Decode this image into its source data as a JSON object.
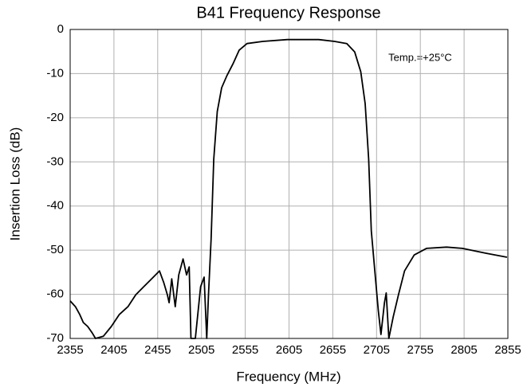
{
  "chart_data": {
    "type": "line",
    "title": "B41 Frequency Response",
    "x_label": "Frequency (MHz)",
    "y_label": "Insertion Loss (dB)",
    "annotation": "Temp.=+25°C",
    "xlim": [
      2355,
      2855
    ],
    "ylim": [
      -70,
      0
    ],
    "xticks": [
      2355,
      2405,
      2455,
      2505,
      2555,
      2605,
      2655,
      2705,
      2755,
      2805,
      2855
    ],
    "yticks": [
      -70,
      -60,
      -50,
      -40,
      -30,
      -20,
      -10,
      0
    ],
    "grid": true,
    "series": [
      {
        "name": "Insertion Loss",
        "color": "#000000",
        "x": [
          2355,
          2361,
          2366,
          2370,
          2375,
          2380,
          2384,
          2393,
          2402,
          2411,
          2421,
          2430,
          2439,
          2448,
          2457,
          2462,
          2466,
          2468,
          2471,
          2475,
          2479,
          2484,
          2488,
          2491,
          2493,
          2498,
          2504,
          2508,
          2511,
          2513,
          2516,
          2519,
          2523,
          2528,
          2534,
          2541,
          2548,
          2557,
          2575,
          2603,
          2639,
          2657,
          2671,
          2680,
          2687,
          2692,
          2696,
          2699,
          2703,
          2707,
          2710,
          2714,
          2716,
          2719,
          2724,
          2730,
          2737,
          2748,
          2762,
          2785,
          2803,
          2830,
          2854
        ],
        "values": [
          -61.5,
          -62.8,
          -64.6,
          -66.4,
          -67.3,
          -68.7,
          -70,
          -69.5,
          -67.3,
          -64.6,
          -62.8,
          -60.1,
          -58.3,
          -56.5,
          -54.7,
          -57.4,
          -60.1,
          -61.9,
          -56.5,
          -62.8,
          -55.6,
          -52,
          -55.6,
          -53.8,
          -70,
          -70,
          -58.3,
          -56.1,
          -70,
          -60.1,
          -47.4,
          -29.4,
          -18.6,
          -13.2,
          -10.5,
          -7.8,
          -4.7,
          -3.2,
          -2.7,
          -2.3,
          -2.3,
          -2.7,
          -3.2,
          -5.1,
          -9.6,
          -16.8,
          -29.4,
          -45.6,
          -54.7,
          -63.7,
          -69.1,
          -61.9,
          -59.7,
          -70,
          -65.1,
          -60.1,
          -54.7,
          -51.1,
          -49.6,
          -49.3,
          -49.6,
          -50.7,
          -51.6
        ]
      }
    ]
  }
}
